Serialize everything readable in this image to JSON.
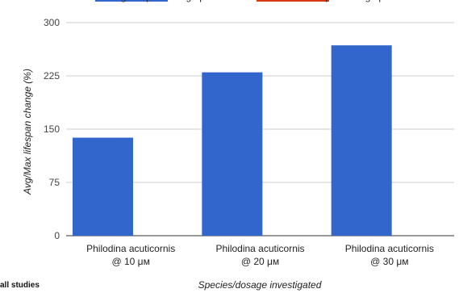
{
  "footnote": "all studies",
  "chart_data": {
    "type": "bar",
    "categories": [
      [
        "Philodina acuticornis",
        "@ 10 μм"
      ],
      [
        "Philodina acuticornis",
        "@ 20 μм"
      ],
      [
        "Philodina acuticornis",
        "@ 30 μм"
      ]
    ],
    "series": [
      {
        "name": "Avg lifespan change percent",
        "color": "#3366cc",
        "values": [
          138,
          230,
          268
        ]
      },
      {
        "name": "Max lifespan change percent",
        "color": "#dc3912",
        "values": [
          0,
          0,
          0
        ]
      }
    ],
    "xlabel": "Species/dosage investigated",
    "ylabel": "Avg/Max lifespan change (%)",
    "ylim": [
      0,
      300
    ],
    "yticks": [
      0,
      75,
      150,
      225,
      300
    ],
    "grid": true,
    "legend": "top"
  }
}
